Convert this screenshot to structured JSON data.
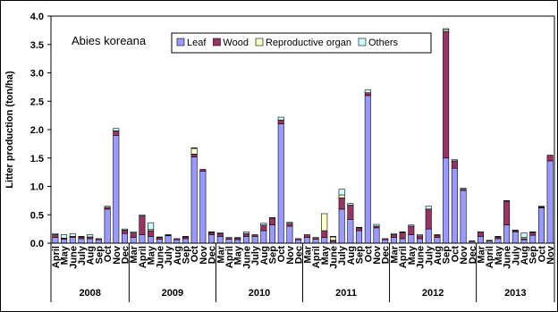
{
  "chart_data": {
    "type": "stacked-bar",
    "annotation": "Abies koreana",
    "y_label": "Litter production (ton/ha)",
    "ylim": [
      0,
      4
    ],
    "yticks": [
      {
        "value": 0,
        "label": "0.0"
      },
      {
        "value": 0.5,
        "label": "0.5"
      },
      {
        "value": 1,
        "label": "1.0"
      },
      {
        "value": 1.5,
        "label": "1.5"
      },
      {
        "value": 2,
        "label": "2.0"
      },
      {
        "value": 2.5,
        "label": "2.5"
      },
      {
        "value": 3,
        "label": "3.0"
      },
      {
        "value": 3.5,
        "label": "3.5"
      },
      {
        "value": 4,
        "label": "4.0"
      }
    ],
    "groups": [
      {
        "label": "2008",
        "categories": [
          "April",
          "May",
          "June",
          "July",
          "Aug",
          "Sep",
          "Oct",
          "Nov",
          "Dec"
        ]
      },
      {
        "label": "2009",
        "categories": [
          "Mar",
          "April",
          "May",
          "June",
          "July",
          "Aug",
          "Sep",
          "Oct",
          "Nov",
          "Dec"
        ]
      },
      {
        "label": "2010",
        "categories": [
          "Mar",
          "April",
          "May",
          "June",
          "July",
          "Aug",
          "Sep",
          "Oct",
          "Nov",
          "Dec"
        ]
      },
      {
        "label": "2011",
        "categories": [
          "Mar",
          "April",
          "May",
          "June",
          "July",
          "Aug",
          "Sep",
          "Oct",
          "Nov",
          "Dec"
        ]
      },
      {
        "label": "2012",
        "categories": [
          "Mar",
          "April",
          "May",
          "June",
          "July",
          "Aug",
          "Sep",
          "Oct",
          "Nov",
          "Dec"
        ]
      },
      {
        "label": "2013",
        "categories": [
          "Mar",
          "April",
          "May",
          "June",
          "July",
          "Aug",
          "Sep",
          "Oct",
          "Nov"
        ]
      }
    ],
    "series": [
      {
        "name": "Leaf",
        "color": "#9999ff",
        "values": [
          0.1,
          0.07,
          0.1,
          0.08,
          0.08,
          0.06,
          0.6,
          1.9,
          0.17,
          0.1,
          0.15,
          0.12,
          0.07,
          0.13,
          0.06,
          0.08,
          1.52,
          1.27,
          0.15,
          0.12,
          0.07,
          0.06,
          0.12,
          0.12,
          0.22,
          0.32,
          2.1,
          0.3,
          0.06,
          0.1,
          0.07,
          0.1,
          0.03,
          0.6,
          0.42,
          0.22,
          2.6,
          0.27,
          0.06,
          0.1,
          0.08,
          0.15,
          0.08,
          0.25,
          0.1,
          1.5,
          1.32,
          0.93,
          0.03,
          0.12,
          0.04,
          0.08,
          0.32,
          0.2,
          0.06,
          0.14,
          0.62,
          1.45
        ]
      },
      {
        "name": "Wood",
        "color": "#993366",
        "values": [
          0.05,
          0.02,
          0.02,
          0.03,
          0.03,
          0.02,
          0.03,
          0.08,
          0.06,
          0.08,
          0.33,
          0.1,
          0.03,
          0.01,
          0.02,
          0.03,
          0.05,
          0.03,
          0.04,
          0.05,
          0.03,
          0.03,
          0.05,
          0.03,
          0.1,
          0.12,
          0.07,
          0.05,
          0.02,
          0.05,
          0.03,
          0.12,
          0.02,
          0.2,
          0.25,
          0.05,
          0.05,
          0.03,
          0.02,
          0.05,
          0.11,
          0.15,
          0.05,
          0.35,
          0.04,
          2.23,
          0.13,
          0.02,
          0.01,
          0.08,
          0.01,
          0.03,
          0.42,
          0.02,
          0.02,
          0.05,
          0.02,
          0.1
        ]
      },
      {
        "name": "Reproductive organ",
        "color": "#ffffcc",
        "values": [
          0,
          0,
          0,
          0,
          0,
          0,
          0,
          0,
          0,
          0,
          0,
          0.02,
          0,
          0,
          0,
          0,
          0.1,
          0,
          0,
          0,
          0,
          0,
          0,
          0,
          0,
          0,
          0,
          0,
          0,
          0,
          0,
          0.3,
          0.06,
          0.05,
          0,
          0,
          0,
          0,
          0,
          0,
          0,
          0,
          0,
          0,
          0,
          0.03,
          0,
          0,
          0,
          0,
          0,
          0,
          0,
          0,
          0.02,
          0,
          0,
          0
        ]
      },
      {
        "name": "Others",
        "color": "#ccffff",
        "values": [
          0.02,
          0.06,
          0.05,
          0.01,
          0.04,
          0,
          0.02,
          0.04,
          0.02,
          0.02,
          0.02,
          0.12,
          0.01,
          0.01,
          0,
          0.01,
          0.01,
          0,
          0.01,
          0.01,
          0,
          0.01,
          0.03,
          0,
          0.03,
          0.01,
          0.05,
          0.02,
          0,
          0,
          0,
          0,
          0.01,
          0.1,
          0.03,
          0.01,
          0.05,
          0.03,
          0,
          0.02,
          0.01,
          0.02,
          0.02,
          0.05,
          0.01,
          0.02,
          0.02,
          0.02,
          0,
          0,
          0,
          0.01,
          0.01,
          0.01,
          0.08,
          0.01,
          0.01,
          0
        ]
      }
    ]
  }
}
